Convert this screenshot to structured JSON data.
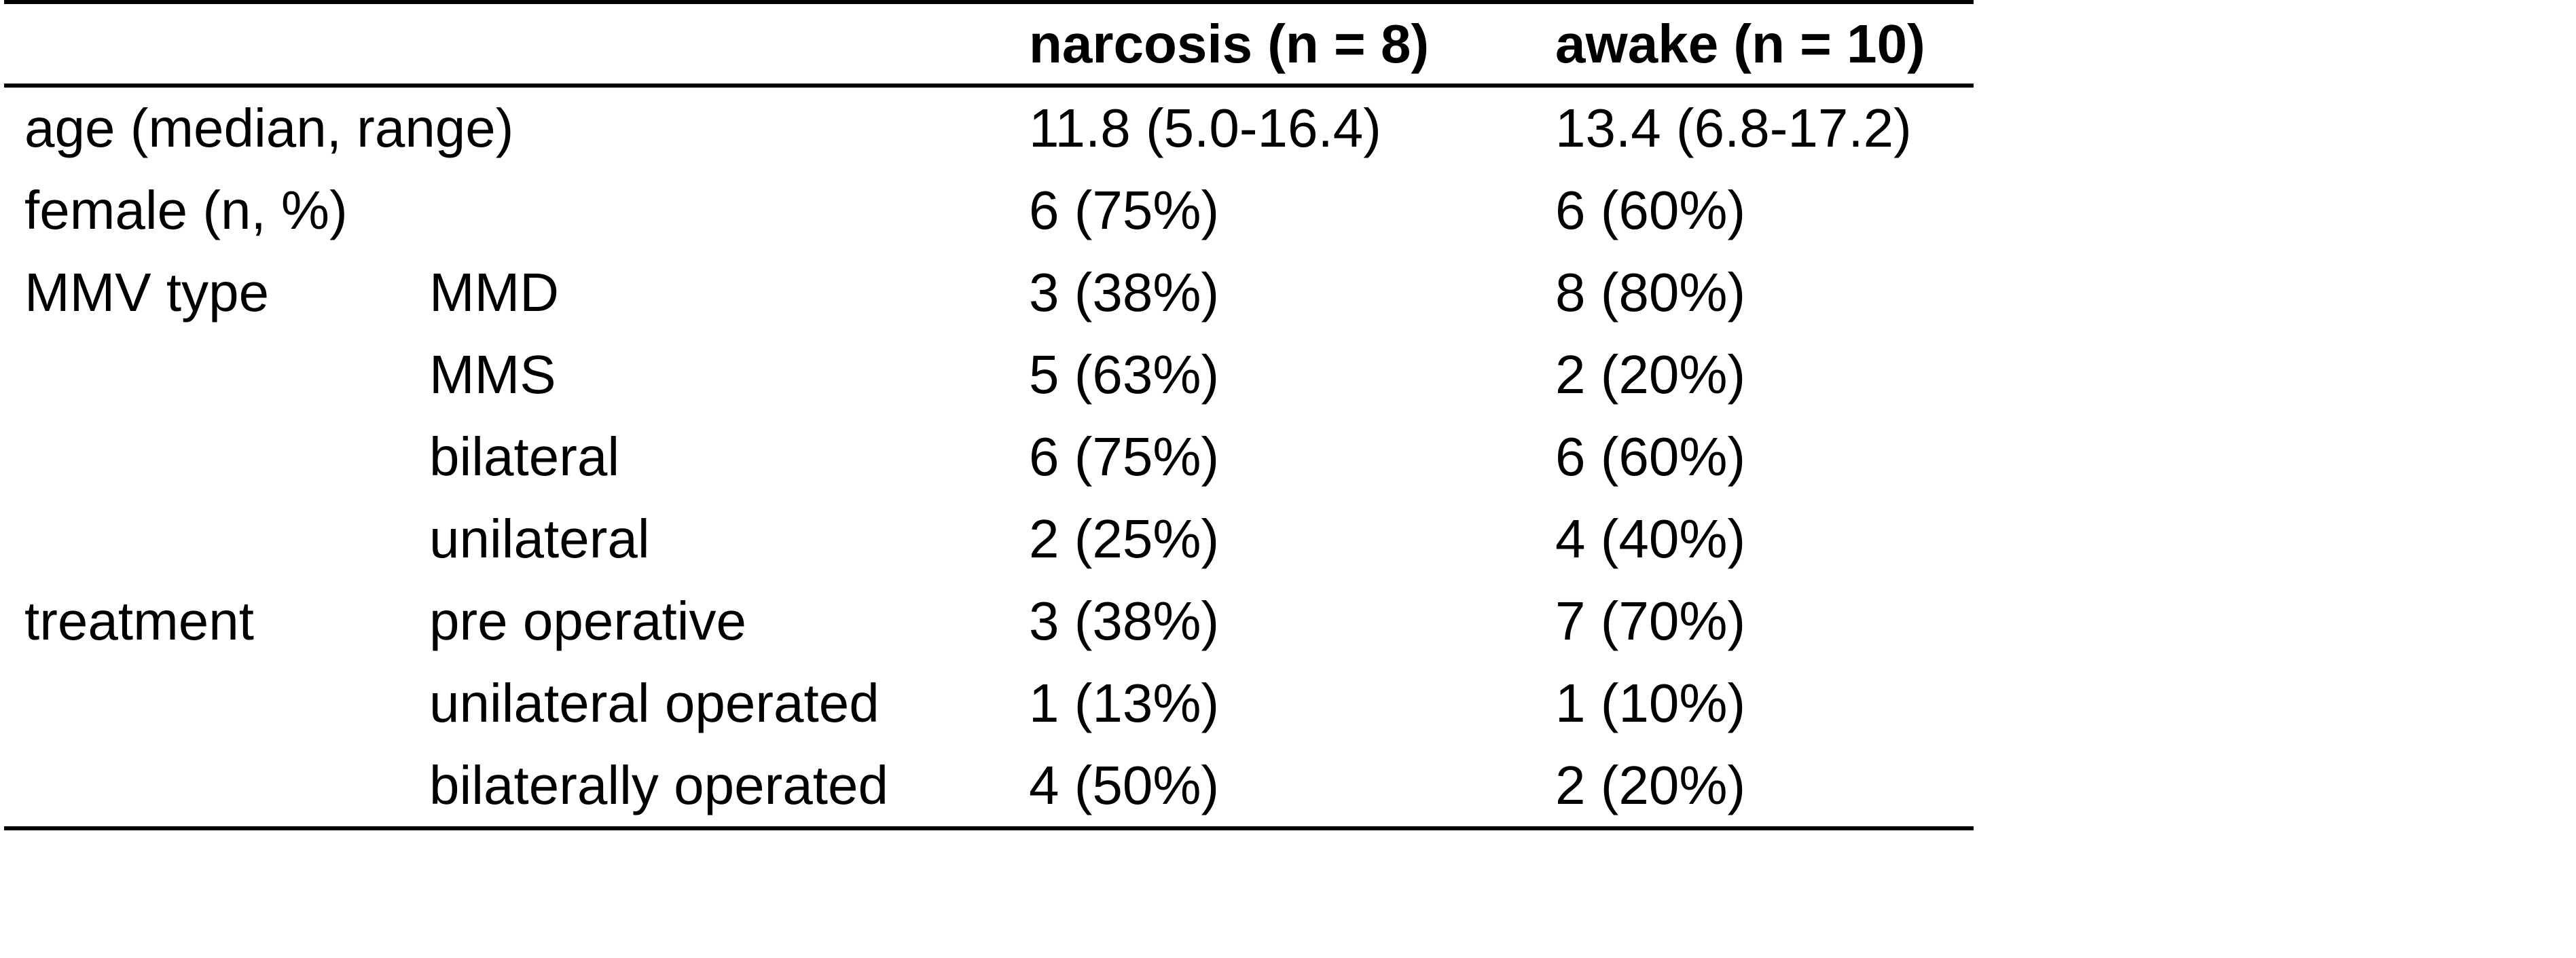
{
  "table": {
    "description": "patient characteristics comparison table",
    "line_color": "#000000",
    "text_color": "#000000",
    "background_color": "#ffffff",
    "header": {
      "category": "",
      "subcategory": "",
      "narcosis": "narcosis (n = 8)",
      "awake": "awake (n = 10)"
    },
    "rows": [
      {
        "category": "age (median, range)",
        "subcategory": "",
        "narcosis": "11.8 (5.0-16.4)",
        "awake": "13.4 (6.8-17.2)"
      },
      {
        "category": "female (n, %)",
        "subcategory": "",
        "narcosis": "6 (75%)",
        "awake": "6 (60%)"
      },
      {
        "category": "MMV type",
        "subcategory": "MMD",
        "narcosis": "3 (38%)",
        "awake": "8 (80%)"
      },
      {
        "category": "",
        "subcategory": "MMS",
        "narcosis": "5 (63%)",
        "awake": "2 (20%)"
      },
      {
        "category": "",
        "subcategory": "bilateral",
        "narcosis": "6 (75%)",
        "awake": "6 (60%)"
      },
      {
        "category": "",
        "subcategory": "unilateral",
        "narcosis": "2 (25%)",
        "awake": "4 (40%)"
      },
      {
        "category": "treatment",
        "subcategory": "pre operative",
        "narcosis": "3 (38%)",
        "awake": "7 (70%)"
      },
      {
        "category": "",
        "subcategory": "unilateral operated",
        "narcosis": "1 (13%)",
        "awake": "1 (10%)"
      },
      {
        "category": "",
        "subcategory": "bilaterally operated",
        "narcosis": "4 (50%)",
        "awake": "2 (20%)"
      }
    ]
  }
}
